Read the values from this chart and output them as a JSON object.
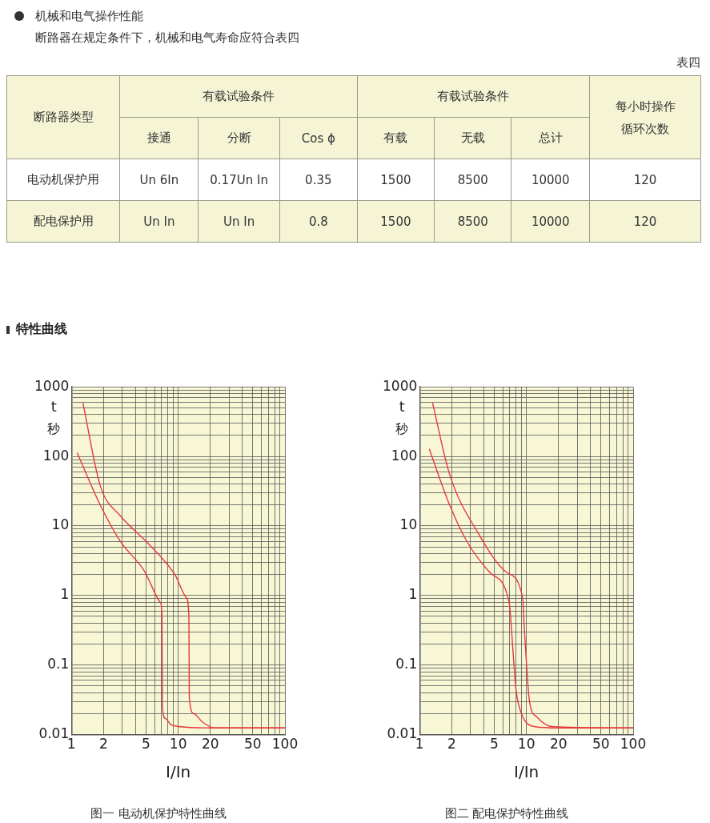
{
  "chart_data": [
    {
      "type": "other",
      "title": "机械和电气操作性能",
      "subtitle": "断路器在规定条件下，机械和电气寿命应符合表四",
      "annotations": [
        "表四",
        "断路器类型",
        "有载试验条件",
        "有载试验条件",
        "每小时操作循环次数",
        "接通",
        "分断",
        "Cos ϕ",
        "有载",
        "无载",
        "总计",
        "电动机保护用",
        "Un 6In",
        "0.17Un In",
        "0.35",
        "1500",
        "8500",
        "10000",
        "120",
        "配电保护用",
        "Un In",
        "Un In",
        "0.8",
        "1500",
        "8500",
        "10000",
        "120"
      ]
    },
    {
      "type": "line",
      "title": "图一 电动机保护特性曲线",
      "annotations": [
        "特性曲线"
      ],
      "xlabel": "I/In",
      "ylabel": "t 秒",
      "log": "xy",
      "grid": true,
      "xlim": [
        1,
        100
      ],
      "ylim": [
        0.01,
        1000
      ],
      "xticks": [
        1,
        2,
        {
          "value": 3,
          "label": null
        },
        {
          "value": 4,
          "label": null
        },
        5,
        {
          "value": 6,
          "label": null
        },
        {
          "value": 7,
          "label": null
        },
        {
          "value": 8,
          "label": null
        },
        {
          "value": 9,
          "label": null
        },
        10,
        20,
        {
          "value": 30,
          "label": null
        },
        {
          "value": 40,
          "label": null
        },
        50,
        {
          "value": 60,
          "label": null
        },
        {
          "value": 70,
          "label": null
        },
        {
          "value": 80,
          "label": null
        },
        {
          "value": 90,
          "label": null
        },
        100
      ],
      "yticks": [
        0.01,
        {
          "value": 0.02,
          "label": null
        },
        {
          "value": 0.03,
          "label": null
        },
        {
          "value": 0.04,
          "label": null
        },
        {
          "value": 0.05,
          "label": null
        },
        {
          "value": 0.06,
          "label": null
        },
        {
          "value": 0.07,
          "label": null
        },
        {
          "value": 0.08,
          "label": null
        },
        {
          "value": 0.09,
          "label": null
        },
        0.1,
        {
          "value": 0.2,
          "label": null
        },
        {
          "value": 0.3,
          "label": null
        },
        {
          "value": 0.4,
          "label": null
        },
        {
          "value": 0.5,
          "label": null
        },
        {
          "value": 0.6,
          "label": null
        },
        {
          "value": 0.7,
          "label": null
        },
        {
          "value": 0.8,
          "label": null
        },
        {
          "value": 0.9,
          "label": null
        },
        1,
        {
          "value": 2,
          "label": null
        },
        {
          "value": 3,
          "label": null
        },
        {
          "value": 4,
          "label": null
        },
        {
          "value": 5,
          "label": null
        },
        {
          "value": 6,
          "label": null
        },
        {
          "value": 7,
          "label": null
        },
        {
          "value": 8,
          "label": null
        },
        {
          "value": 9,
          "label": null
        },
        10,
        {
          "value": 20,
          "label": null
        },
        {
          "value": 30,
          "label": null
        },
        {
          "value": 40,
          "label": null
        },
        {
          "value": 50,
          "label": null
        },
        {
          "value": 60,
          "label": null
        },
        {
          "value": 70,
          "label": null
        },
        {
          "value": 80,
          "label": null
        },
        {
          "value": 90,
          "label": null
        },
        100,
        {
          "value": 200,
          "label": null
        },
        {
          "value": 300,
          "label": null
        },
        {
          "value": 400,
          "label": null
        },
        {
          "value": 500,
          "label": null
        },
        {
          "value": 600,
          "label": null
        },
        {
          "value": 700,
          "label": null
        },
        {
          "value": 800,
          "label": null
        },
        {
          "value": 900,
          "label": null
        },
        1000
      ],
      "series": [
        {
          "color": "#e8383d",
          "x": [
            1.13,
            1.86,
            2.87,
            4.7,
            6.85,
            7.05,
            7.1,
            7.6,
            8.5,
            10.6,
            20,
            100
          ],
          "values": [
            113,
            20,
            6,
            2.4,
            0.78,
            0.5,
            0.025,
            0.017,
            0.014,
            0.013,
            0.0125,
            0.0125
          ]
        },
        {
          "color": "#e8383d",
          "x": [
            1.28,
            1.86,
            2.87,
            5.3,
            9.3,
            11.9,
            12.6,
            12.7,
            14,
            17,
            22,
            100
          ],
          "values": [
            590,
            38,
            14,
            5.5,
            2,
            0.94,
            0.5,
            0.034,
            0.02,
            0.015,
            0.0125,
            0.0125
          ]
        }
      ]
    },
    {
      "type": "line",
      "title": "图二 配电保护特性曲线",
      "xlabel": "I/In",
      "ylabel": "t 秒",
      "log": "xy",
      "grid": true,
      "xlim": [
        1,
        100
      ],
      "ylim": [
        0.01,
        1000
      ],
      "xticks": [
        1,
        2,
        {
          "value": 3,
          "label": null
        },
        {
          "value": 4,
          "label": null
        },
        5,
        {
          "value": 6,
          "label": null
        },
        {
          "value": 7,
          "label": null
        },
        {
          "value": 8,
          "label": null
        },
        {
          "value": 9,
          "label": null
        },
        10,
        20,
        {
          "value": 30,
          "label": null
        },
        {
          "value": 40,
          "label": null
        },
        50,
        {
          "value": 60,
          "label": null
        },
        {
          "value": 70,
          "label": null
        },
        {
          "value": 80,
          "label": null
        },
        {
          "value": 90,
          "label": null
        },
        100
      ],
      "yticks": [
        0.01,
        {
          "value": 0.02,
          "label": null
        },
        {
          "value": 0.03,
          "label": null
        },
        {
          "value": 0.04,
          "label": null
        },
        {
          "value": 0.05,
          "label": null
        },
        {
          "value": 0.06,
          "label": null
        },
        {
          "value": 0.07,
          "label": null
        },
        {
          "value": 0.08,
          "label": null
        },
        {
          "value": 0.09,
          "label": null
        },
        0.1,
        {
          "value": 0.2,
          "label": null
        },
        {
          "value": 0.3,
          "label": null
        },
        {
          "value": 0.4,
          "label": null
        },
        {
          "value": 0.5,
          "label": null
        },
        {
          "value": 0.6,
          "label": null
        },
        {
          "value": 0.7,
          "label": null
        },
        {
          "value": 0.8,
          "label": null
        },
        {
          "value": 0.9,
          "label": null
        },
        1,
        {
          "value": 2,
          "label": null
        },
        {
          "value": 3,
          "label": null
        },
        {
          "value": 4,
          "label": null
        },
        {
          "value": 5,
          "label": null
        },
        {
          "value": 6,
          "label": null
        },
        {
          "value": 7,
          "label": null
        },
        {
          "value": 8,
          "label": null
        },
        {
          "value": 9,
          "label": null
        },
        10,
        {
          "value": 20,
          "label": null
        },
        {
          "value": 30,
          "label": null
        },
        {
          "value": 40,
          "label": null
        },
        {
          "value": 50,
          "label": null
        },
        {
          "value": 60,
          "label": null
        },
        {
          "value": 70,
          "label": null
        },
        {
          "value": 80,
          "label": null
        },
        {
          "value": 90,
          "label": null
        },
        100,
        {
          "value": 200,
          "label": null
        },
        {
          "value": 300,
          "label": null
        },
        {
          "value": 400,
          "label": null
        },
        {
          "value": 500,
          "label": null
        },
        {
          "value": 600,
          "label": null
        },
        {
          "value": 700,
          "label": null
        },
        {
          "value": 800,
          "label": null
        },
        {
          "value": 900,
          "label": null
        },
        1000
      ],
      "series": [
        {
          "color": "#e8383d",
          "x": [
            1.23,
            1.91,
            2.77,
            4.54,
            6.9,
            7.1,
            8,
            9,
            12.1,
            20,
            100
          ],
          "values": [
            128,
            20,
            6,
            2.15,
            0.79,
            0.5,
            0.044,
            0.02,
            0.013,
            0.0125,
            0.0125
          ]
        },
        {
          "color": "#e8383d",
          "x": [
            1.32,
            1.91,
            3.53,
            6.55,
            9.2,
            9.6,
            10.7,
            12.5,
            17.6,
            100
          ],
          "values": [
            590,
            55,
            7.9,
            2.15,
            0.94,
            0.3,
            0.03,
            0.018,
            0.013,
            0.0125
          ]
        }
      ]
    }
  ]
}
